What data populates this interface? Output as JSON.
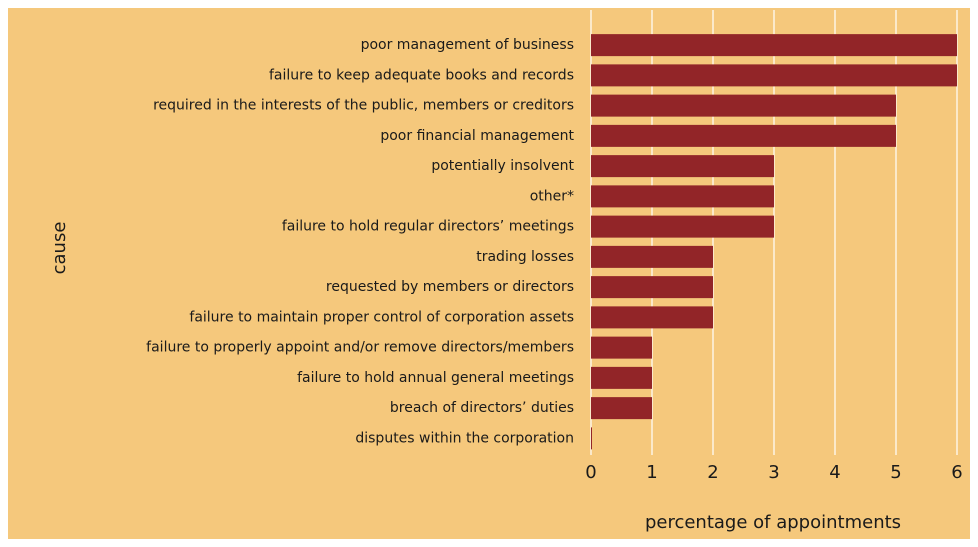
{
  "chart_data": {
    "type": "bar",
    "orientation": "horizontal",
    "x_label": "percentage of appointments",
    "y_label": "cause",
    "categories": [
      "poor management of business",
      "failure to keep adequate books and records",
      "required in the interests of the public, members or creditors",
      "poor financial management",
      "potentially insolvent",
      "other*",
      "failure to hold regular directors’ meetings",
      "trading losses",
      "requested by members or directors",
      "failure to maintain proper control of corporation assets",
      "failure to properly appoint and/or remove directors/members",
      "failure to hold annual general meetings",
      "breach of directors’ duties",
      "disputes within the corporation"
    ],
    "values": [
      6,
      6,
      5,
      5,
      3,
      3,
      3,
      2,
      2,
      2,
      1,
      1,
      1,
      0
    ],
    "color": "#922528",
    "background": "#f5c87c",
    "grid": true,
    "xlim": [
      0,
      6
    ],
    "xticks": [
      0,
      1,
      2,
      3,
      4,
      5,
      6
    ]
  }
}
